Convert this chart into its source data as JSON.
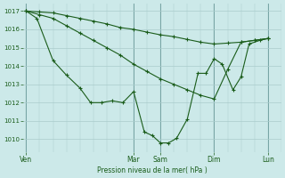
{
  "xlabel": "Pression niveau de la mer( hPa )",
  "background_color": "#cce9e9",
  "grid_color": "#aacccc",
  "line_color": "#1a5c1a",
  "ylim": [
    1009.3,
    1017.4
  ],
  "yticks": [
    1010,
    1011,
    1012,
    1013,
    1014,
    1015,
    1016,
    1017
  ],
  "day_labels": [
    "Ven",
    "Mar",
    "Sam",
    "Dim",
    "Lun"
  ],
  "day_positions": [
    0,
    4,
    5,
    7,
    9
  ],
  "xlim": [
    -0.1,
    9.5
  ],
  "series1_x": [
    0,
    0.5,
    1,
    1.5,
    2,
    2.5,
    3,
    3.5,
    4,
    4.5,
    5,
    5.5,
    6,
    6.5,
    7,
    7.5,
    8,
    8.5,
    9
  ],
  "series1_y": [
    1017.0,
    1016.95,
    1016.9,
    1016.75,
    1016.6,
    1016.45,
    1016.3,
    1016.1,
    1016.0,
    1015.85,
    1015.7,
    1015.6,
    1015.45,
    1015.3,
    1015.2,
    1015.25,
    1015.3,
    1015.4,
    1015.5
  ],
  "series2_x": [
    0,
    0.5,
    1,
    1.5,
    2,
    2.5,
    3,
    3.5,
    4,
    4.5,
    5,
    5.5,
    6,
    6.5,
    7,
    7.5,
    8,
    8.5,
    9
  ],
  "series2_y": [
    1017.0,
    1016.8,
    1016.6,
    1016.2,
    1015.8,
    1015.4,
    1015.0,
    1014.6,
    1014.1,
    1013.7,
    1013.3,
    1013.0,
    1012.7,
    1012.4,
    1012.2,
    1013.8,
    1015.3,
    1015.4,
    1015.5
  ],
  "series3_x": [
    0,
    0.4,
    1.0,
    1.5,
    2.0,
    2.4,
    2.8,
    3.2,
    3.6,
    4.0,
    4.4,
    4.7,
    5.0,
    5.3,
    5.6,
    6.0,
    6.4,
    6.7,
    7.0,
    7.3,
    7.7,
    8.0,
    8.3,
    8.7,
    9.0
  ],
  "series3_y": [
    1017.0,
    1016.6,
    1014.3,
    1013.5,
    1012.8,
    1012.0,
    1012.0,
    1012.1,
    1012.0,
    1012.6,
    1010.4,
    1010.2,
    1009.8,
    1009.8,
    1010.05,
    1011.1,
    1013.6,
    1013.6,
    1014.4,
    1014.1,
    1012.7,
    1013.4,
    1015.2,
    1015.4,
    1015.5
  ]
}
